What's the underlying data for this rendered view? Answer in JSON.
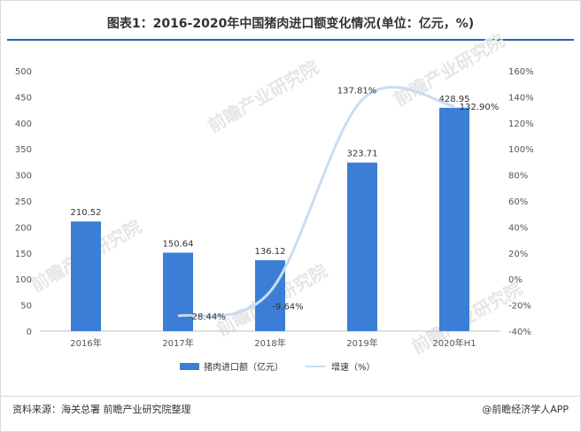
{
  "title": "图表1：2016-2020年中国猪肉进口额变化情况(单位：亿元，%)",
  "source": "资料来源：海关总署 前瞻产业研究院整理",
  "brand": "@前瞻经济学人APP",
  "watermark": "前瞻产业研究院",
  "colors": {
    "bar": "#3a7fd5",
    "line": "#c9dcf2",
    "title_rule": "#1f64b4"
  },
  "chart_data": {
    "type": "bar",
    "categories": [
      "2016年",
      "2017年",
      "2018年",
      "2019年",
      "2020年H1"
    ],
    "series": [
      {
        "name": "猪肉进口额（亿元）",
        "type": "bar",
        "axis": "left",
        "values": [
          210.52,
          150.64,
          136.12,
          323.71,
          428.95
        ],
        "labels": [
          "210.52",
          "150.64",
          "136.12",
          "323.71",
          "428.95"
        ]
      },
      {
        "name": "增速（%）",
        "type": "line",
        "axis": "right",
        "smooth": true,
        "values": [
          null,
          -28.44,
          -9.64,
          137.81,
          132.9
        ],
        "labels": [
          "",
          "-28.44%",
          "-9.64%",
          "137.81%",
          "132.90%"
        ]
      }
    ],
    "y_left": {
      "min": 0,
      "max": 500,
      "step": 50
    },
    "y_right": {
      "min": -40,
      "max": 160,
      "step": 20,
      "suffix": "%"
    },
    "grid": false,
    "legend": "bottom"
  }
}
